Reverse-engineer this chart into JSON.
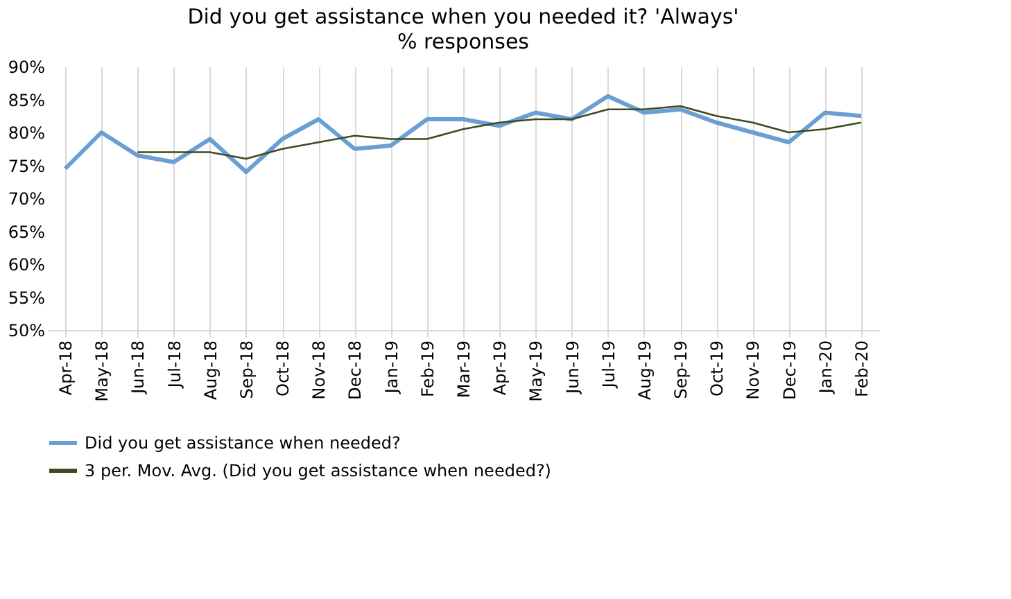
{
  "chart_data": {
    "type": "line",
    "title": "Did you get assistance when you needed it? 'Always'",
    "subtitle": "% responses",
    "categories": [
      "Apr-18",
      "May-18",
      "Jun-18",
      "Jul-18",
      "Aug-18",
      "Sep-18",
      "Oct-18",
      "Nov-18",
      "Dec-18",
      "Jan-19",
      "Feb-19",
      "Mar-19",
      "Apr-19",
      "May-19",
      "Jun-19",
      "Jul-19",
      "Aug-19",
      "Sep-19",
      "Oct-19",
      "Nov-19",
      "Dec-19",
      "Jan-20",
      "Feb-20"
    ],
    "series": [
      {
        "name": "Did you get assistance when needed?",
        "color": "#6a9fd4",
        "values": [
          74.5,
          80,
          76.5,
          75.5,
          79,
          74,
          79,
          82,
          77.5,
          78,
          82,
          82,
          81,
          83,
          82,
          85.5,
          83,
          83.5,
          81.5,
          80,
          78.5,
          83,
          82.5
        ]
      },
      {
        "name": "3 per. Mov. Avg. (Did you get assistance when needed?)",
        "color": "#3d4a1e",
        "values": [
          null,
          null,
          77,
          77,
          77,
          76,
          77.5,
          78.5,
          79.5,
          79,
          79,
          80.5,
          81.5,
          82,
          82,
          83.5,
          83.5,
          84,
          82.5,
          81.5,
          80,
          80.5,
          81.5
        ]
      }
    ],
    "ylim": [
      50,
      90
    ],
    "yticks": [
      {
        "value": 50,
        "label": "50%"
      },
      {
        "value": 55,
        "label": "55%"
      },
      {
        "value": 60,
        "label": "60%"
      },
      {
        "value": 65,
        "label": "65%"
      },
      {
        "value": 70,
        "label": "70%"
      },
      {
        "value": 75,
        "label": "75%"
      },
      {
        "value": 80,
        "label": "80%"
      },
      {
        "value": 85,
        "label": "85%"
      },
      {
        "value": 90,
        "label": "90%"
      }
    ],
    "grid": "x",
    "legend": "bottom",
    "marker": "none",
    "line_style": "solid"
  }
}
